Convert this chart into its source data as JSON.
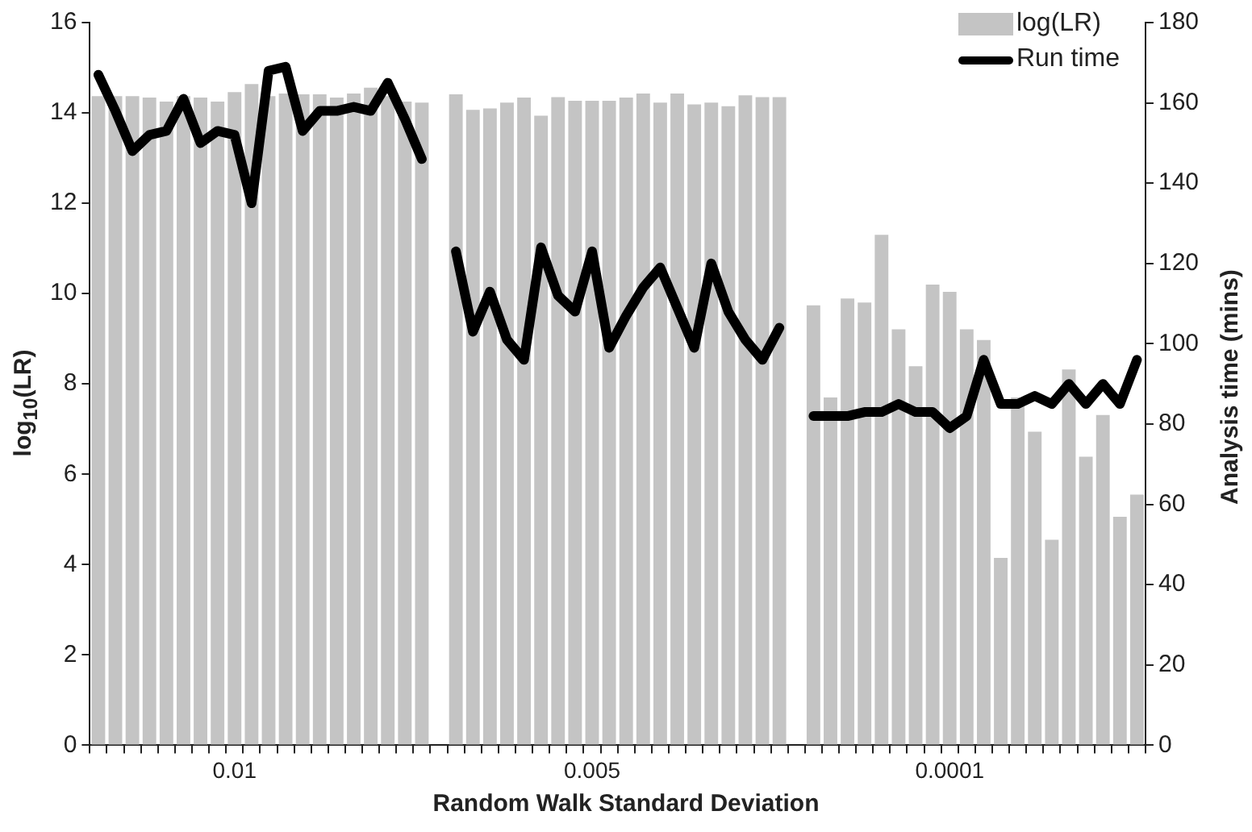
{
  "chart_data": {
    "type": "bar",
    "xlabel": "Random Walk Standard Deviation",
    "ylabel": "log$_{10}$(LR)",
    "y2label": "Analysis time (mins)",
    "categories": [
      null,
      null,
      null,
      null,
      null,
      null,
      null,
      null,
      "0.01",
      null,
      null,
      null,
      null,
      null,
      null,
      null,
      null,
      null,
      null,
      null,
      null,
      null,
      null,
      null,
      null,
      null,
      null,
      null,
      null,
      "0.005",
      null,
      null,
      null,
      null,
      null,
      null,
      null,
      null,
      null,
      null,
      null,
      null,
      null,
      null,
      null,
      null,
      null,
      null,
      null,
      null,
      "0.0001",
      null,
      null,
      null,
      null,
      null,
      null,
      null,
      null,
      null,
      null,
      null
    ],
    "series": [
      {
        "name": "log(LR)",
        "color": "#c4c4c4",
        "values": [
          14.37,
          14.37,
          14.37,
          14.34,
          14.25,
          14.37,
          14.34,
          14.25,
          14.46,
          14.64,
          14.37,
          14.43,
          14.41,
          14.41,
          14.34,
          14.43,
          14.56,
          14.37,
          14.25,
          14.23,
          null,
          14.41,
          14.07,
          14.1,
          14.23,
          14.34,
          13.94,
          14.35,
          14.27,
          14.27,
          14.27,
          14.34,
          14.43,
          14.23,
          14.43,
          14.19,
          14.23,
          14.15,
          14.39,
          14.35,
          14.35,
          null,
          9.74,
          7.7,
          9.89,
          9.8,
          11.3,
          9.21,
          8.39,
          10.2,
          10.04,
          9.21,
          8.97,
          4.15,
          7.7,
          6.94,
          4.55,
          8.32,
          6.39,
          7.31,
          5.06,
          5.55
        ]
      },
      {
        "name": "Run time",
        "type": "line",
        "axis": "y2",
        "color": "#000000",
        "values": [
          167,
          158,
          148,
          152,
          153,
          161,
          150,
          153,
          152,
          135,
          168,
          169,
          153,
          158,
          158,
          159,
          158,
          165,
          156,
          146,
          null,
          123,
          103,
          113,
          101,
          96,
          124,
          112,
          108,
          123,
          99,
          107,
          114,
          119,
          109,
          99,
          120,
          108,
          101,
          96,
          104,
          null,
          82,
          82,
          82,
          83,
          83,
          85,
          83,
          83,
          79,
          82,
          96,
          85,
          85,
          87,
          85,
          90,
          85,
          90,
          85,
          96
        ]
      }
    ],
    "ylim": [
      0,
      16
    ],
    "yticks": [
      0,
      2,
      4,
      6,
      8,
      10,
      12,
      14,
      16
    ],
    "y2lim": [
      0,
      180
    ],
    "y2ticks": [
      0,
      20,
      40,
      60,
      80,
      100,
      120,
      140,
      160,
      180
    ],
    "grid": false,
    "legend": "top right",
    "marker": "none",
    "line_style": "solid"
  }
}
